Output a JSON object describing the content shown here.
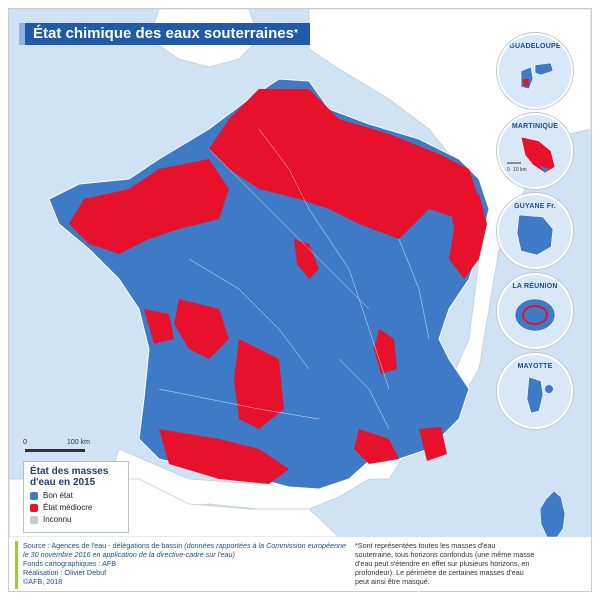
{
  "title": {
    "main": "État chimique des eaux souterraines",
    "mark": "*"
  },
  "colors": {
    "good": "#3f7ac6",
    "poor": "#e8112b",
    "unknown": "#c9c9c9",
    "sea": "#cfe3f4",
    "land": "#ffffff",
    "title_bg": "#1f5ba8"
  },
  "insets": [
    {
      "label": "GUADELOUPE",
      "state": "good"
    },
    {
      "label": "MARTINIQUE",
      "state": "poor"
    },
    {
      "label": "GUYANE Fr.",
      "state": "good"
    },
    {
      "label": "LA RÉUNION",
      "state": "good"
    },
    {
      "label": "MAYOTTE",
      "state": "good"
    }
  ],
  "inset_scales": [
    "0",
    "10 km"
  ],
  "scale": {
    "zero": "0",
    "distance": "100 km"
  },
  "legend": {
    "title": "État des masses d'eau en 2015",
    "items": [
      {
        "label": "Bon état",
        "color": "#3f7ac6"
      },
      {
        "label": "État médiocre",
        "color": "#e8112b"
      },
      {
        "label": "Inconnu",
        "color": "#c9c9c9"
      }
    ]
  },
  "source": {
    "line1_prefix": "Source : Agences de l'eau - délégations de bassin ",
    "line1_italic": "(données rapportées à la Commission européenne le 30 novembre 2016 en application de la directive-cadre sur l'eau)",
    "fonds": "Fonds cartographiques : AFB",
    "realisation": "Réalisation : Olivier Debuf",
    "copyright": "©AFB, 2018"
  },
  "note": "*Sont représentées toutes les masses d'eau souterraine, tous horizons confondus (une même masse d'eau peut s'étendre en effet sur plusieurs horizons, en profondeur). Le périmètre de certaines masses d'eau peut ainsi être masqué."
}
